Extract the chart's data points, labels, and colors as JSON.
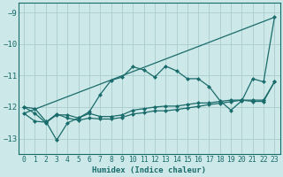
{
  "xlabel": "Humidex (Indice chaleur)",
  "bg_color": "#cce8e8",
  "grid_color": "#aacccc",
  "line_color": "#1a6b6b",
  "xlim": [
    -0.5,
    23.5
  ],
  "ylim": [
    -13.5,
    -8.7
  ],
  "yticks": [
    -13,
    -12,
    -11,
    -10,
    -9
  ],
  "xticks": [
    0,
    1,
    2,
    3,
    4,
    5,
    6,
    7,
    8,
    9,
    10,
    11,
    12,
    13,
    14,
    15,
    16,
    17,
    18,
    19,
    20,
    21,
    22,
    23
  ],
  "line1_x": [
    0,
    1,
    2,
    3,
    4,
    5,
    6,
    7,
    8,
    9,
    10,
    11,
    12,
    13,
    14,
    15,
    16,
    17,
    18,
    19,
    20,
    21,
    22,
    23
  ],
  "line1_y": [
    -12.0,
    -12.05,
    -12.45,
    -13.05,
    -12.5,
    -12.35,
    -12.15,
    -11.6,
    -11.15,
    -11.05,
    -10.72,
    -10.82,
    -11.05,
    -10.7,
    -10.85,
    -11.1,
    -11.1,
    -11.35,
    -11.8,
    -12.1,
    -11.8,
    -11.1,
    -11.2,
    -9.15
  ],
  "line2_x": [
    0,
    1,
    2,
    3,
    4,
    5,
    6,
    7,
    8,
    9,
    10,
    11,
    12,
    13,
    14,
    15,
    16,
    17,
    18,
    19,
    20,
    21,
    22,
    23
  ],
  "line2_y": [
    -12.0,
    -12.2,
    -12.5,
    -12.25,
    -12.25,
    -12.35,
    -12.2,
    -12.3,
    -12.3,
    -12.25,
    -12.1,
    -12.05,
    -12.0,
    -11.97,
    -11.97,
    -11.92,
    -11.87,
    -11.87,
    -11.82,
    -11.78,
    -11.78,
    -11.82,
    -11.82,
    -11.2
  ],
  "line3_x": [
    0,
    1,
    2,
    3,
    4,
    5,
    6,
    7,
    8,
    9,
    10,
    11,
    12,
    13,
    14,
    15,
    16,
    17,
    18,
    19,
    20,
    21,
    22,
    23
  ],
  "line3_y": [
    -12.2,
    -12.45,
    -12.48,
    -12.22,
    -12.35,
    -12.42,
    -12.35,
    -12.38,
    -12.38,
    -12.33,
    -12.22,
    -12.18,
    -12.12,
    -12.12,
    -12.08,
    -12.03,
    -11.98,
    -11.92,
    -11.88,
    -11.83,
    -11.78,
    -11.78,
    -11.78,
    -11.2
  ],
  "line4_x": [
    0,
    23
  ],
  "line4_y": [
    -12.2,
    -9.15
  ],
  "markersize": 2.5
}
